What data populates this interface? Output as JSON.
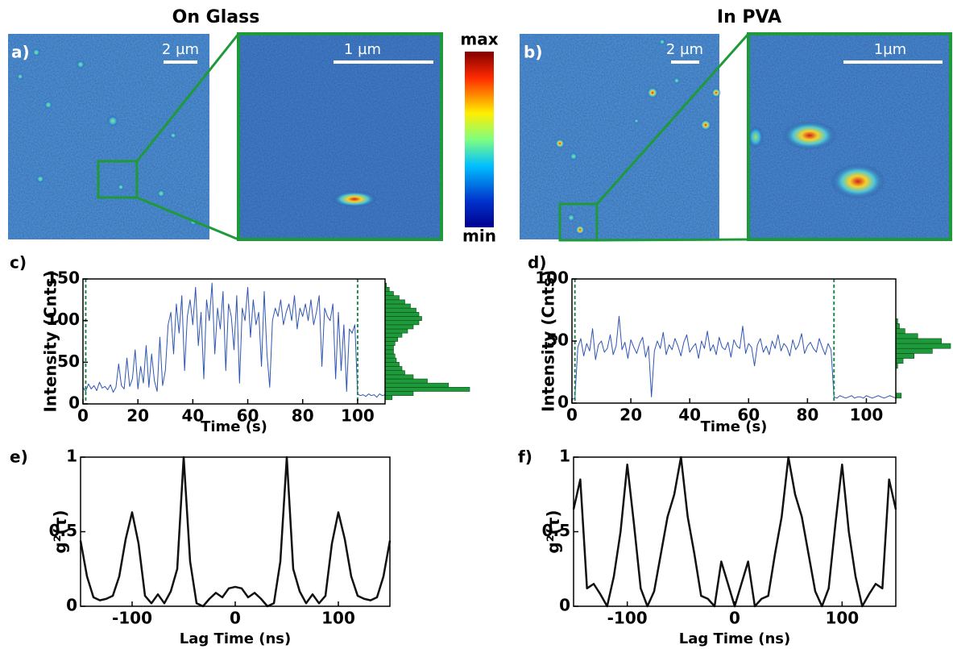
{
  "images": [
    {
      "label": "a)",
      "heading": "On Glass",
      "scale_bar": "2 µm",
      "zoom_scale_bar": "1 µm"
    },
    {
      "label": "b)",
      "heading": "In PVA",
      "scale_bar": "2 µm",
      "zoom_scale_bar": "1µm"
    }
  ],
  "colorbar": {
    "max_label": "max",
    "min_label": "min"
  },
  "chart_data": [
    {
      "type": "line",
      "label": "c)",
      "xlabel": "Time (s)",
      "ylabel": "Intensity (Cnts)",
      "color": "#2f55b3",
      "xlim": [
        0,
        110
      ],
      "ylim": [
        0,
        150
      ],
      "xticks": [
        0,
        20,
        40,
        60,
        80,
        100
      ],
      "yticks": [
        0,
        50,
        100,
        150
      ],
      "x": [
        0,
        1,
        2,
        3,
        4,
        5,
        6,
        7,
        8,
        9,
        10,
        11,
        12,
        13,
        14,
        15,
        16,
        17,
        18,
        19,
        20,
        21,
        22,
        23,
        24,
        25,
        26,
        27,
        28,
        29,
        30,
        31,
        32,
        33,
        34,
        35,
        36,
        37,
        38,
        39,
        40,
        41,
        42,
        43,
        44,
        45,
        46,
        47,
        48,
        49,
        50,
        51,
        52,
        53,
        54,
        55,
        56,
        57,
        58,
        59,
        60,
        61,
        62,
        63,
        64,
        65,
        66,
        67,
        68,
        69,
        70,
        71,
        72,
        73,
        74,
        75,
        76,
        77,
        78,
        79,
        80,
        81,
        82,
        83,
        84,
        85,
        86,
        87,
        88,
        89,
        90,
        91,
        92,
        93,
        94,
        95,
        96,
        97,
        98,
        99,
        100,
        101,
        102,
        103,
        104,
        105,
        106,
        107,
        108,
        109,
        110
      ],
      "values": [
        20,
        15,
        24,
        18,
        22,
        16,
        26,
        19,
        21,
        17,
        23,
        14,
        20,
        48,
        22,
        18,
        55,
        21,
        30,
        65,
        18,
        45,
        25,
        70,
        20,
        60,
        28,
        15,
        80,
        22,
        40,
        95,
        110,
        60,
        120,
        85,
        130,
        40,
        105,
        125,
        95,
        140,
        70,
        110,
        30,
        125,
        100,
        145,
        60,
        115,
        90,
        135,
        40,
        120,
        105,
        65,
        130,
        25,
        115,
        100,
        140,
        80,
        125,
        95,
        110,
        45,
        135,
        60,
        20,
        100,
        115,
        105,
        125,
        95,
        110,
        120,
        100,
        130,
        90,
        115,
        105,
        120,
        100,
        125,
        95,
        110,
        130,
        45,
        115,
        105,
        100,
        120,
        30,
        110,
        40,
        95,
        15,
        90,
        85,
        95,
        12,
        10,
        11,
        9,
        12,
        10,
        11,
        8,
        12,
        10,
        11
      ],
      "vlines": [
        1,
        100
      ],
      "vline_color": "#1e8c4e",
      "histogram": {
        "color": "#1f9a3a",
        "bins": [
          0,
          5,
          10,
          15,
          20,
          25,
          30,
          35,
          40,
          45,
          50,
          55,
          60,
          65,
          70,
          75,
          80,
          85,
          90,
          95,
          100,
          105,
          110,
          115,
          120,
          125,
          130,
          135,
          140,
          145,
          150
        ],
        "counts": [
          0,
          5,
          20,
          60,
          45,
          30,
          20,
          14,
          12,
          10,
          8,
          7,
          6,
          6,
          7,
          9,
          12,
          16,
          20,
          24,
          26,
          24,
          22,
          18,
          14,
          10,
          6,
          3,
          1,
          0
        ]
      }
    },
    {
      "type": "line",
      "label": "d)",
      "xlabel": "Time (s)",
      "ylabel": "Intensity (Cnts)",
      "color": "#2f55b3",
      "xlim": [
        0,
        110
      ],
      "ylim": [
        0,
        100
      ],
      "xticks": [
        0,
        20,
        40,
        60,
        80,
        100
      ],
      "yticks": [
        0,
        50,
        100
      ],
      "x": [
        0,
        1,
        2,
        3,
        4,
        5,
        6,
        7,
        8,
        9,
        10,
        11,
        12,
        13,
        14,
        15,
        16,
        17,
        18,
        19,
        20,
        21,
        22,
        23,
        24,
        25,
        26,
        27,
        28,
        29,
        30,
        31,
        32,
        33,
        34,
        35,
        36,
        37,
        38,
        39,
        40,
        41,
        42,
        43,
        44,
        45,
        46,
        47,
        48,
        49,
        50,
        51,
        52,
        53,
        54,
        55,
        56,
        57,
        58,
        59,
        60,
        61,
        62,
        63,
        64,
        65,
        66,
        67,
        68,
        69,
        70,
        71,
        72,
        73,
        74,
        75,
        76,
        77,
        78,
        79,
        80,
        81,
        82,
        83,
        84,
        85,
        86,
        87,
        88,
        89,
        90,
        91,
        92,
        93,
        94,
        95,
        96,
        97,
        98,
        99,
        100,
        101,
        102,
        103,
        104,
        105,
        106,
        107,
        108,
        109,
        110
      ],
      "values": [
        3,
        4,
        45,
        52,
        38,
        48,
        42,
        60,
        35,
        47,
        50,
        41,
        44,
        55,
        39,
        46,
        70,
        43,
        49,
        36,
        51,
        45,
        40,
        48,
        53,
        37,
        46,
        5,
        42,
        50,
        44,
        57,
        39,
        47,
        43,
        52,
        46,
        38,
        49,
        55,
        41,
        45,
        48,
        36,
        50,
        44,
        58,
        42,
        47,
        39,
        53,
        45,
        43,
        49,
        37,
        51,
        46,
        44,
        62,
        40,
        48,
        45,
        30,
        47,
        52,
        41,
        46,
        39,
        50,
        44,
        55,
        42,
        48,
        45,
        38,
        51,
        43,
        47,
        56,
        40,
        46,
        49,
        44,
        41,
        52,
        45,
        39,
        48,
        43,
        5,
        4,
        6,
        5,
        4,
        5,
        6,
        4,
        5,
        5,
        4,
        6,
        5,
        4,
        5,
        6,
        5,
        4,
        5,
        6,
        5,
        4
      ],
      "vlines": [
        1,
        89
      ],
      "vline_color": "#1e8c4e",
      "histogram": {
        "color": "#1f9a3a",
        "bins": [
          0,
          4,
          8,
          12,
          16,
          20,
          24,
          28,
          32,
          36,
          40,
          44,
          48,
          52,
          56,
          60,
          64,
          68,
          72,
          76,
          80,
          84,
          88,
          92,
          96,
          100
        ],
        "counts": [
          0,
          3,
          0,
          0,
          0,
          0,
          0,
          1,
          4,
          10,
          20,
          30,
          25,
          12,
          5,
          2,
          1,
          0,
          0,
          0,
          0,
          0,
          0,
          0,
          0
        ]
      }
    },
    {
      "type": "line",
      "label": "e)",
      "xlabel": "Lag Time (ns)",
      "ylabel": "g²(τ)",
      "color": "#111111",
      "xlim": [
        -150,
        150
      ],
      "ylim": [
        0,
        1
      ],
      "xticks": [
        -100,
        0,
        100
      ],
      "yticks": [
        0,
        0.5,
        1
      ],
      "x": [
        -150,
        -143.75,
        -137.5,
        -131.25,
        -125,
        -118.75,
        -112.5,
        -106.25,
        -100,
        -93.75,
        -87.5,
        -81.25,
        -75,
        -68.75,
        -62.5,
        -56.25,
        -50,
        -43.75,
        -37.5,
        -31.25,
        -25,
        -18.75,
        -12.5,
        -6.25,
        0,
        6.25,
        12.5,
        18.75,
        25,
        31.25,
        37.5,
        43.75,
        50,
        56.25,
        62.5,
        68.75,
        75,
        81.25,
        87.5,
        93.75,
        100,
        106.25,
        112.5,
        118.75,
        125,
        131.25,
        137.5,
        143.75,
        150
      ],
      "values": [
        0.44,
        0.2,
        0.06,
        0.04,
        0.05,
        0.07,
        0.2,
        0.45,
        0.63,
        0.42,
        0.07,
        0.02,
        0.08,
        0.02,
        0.1,
        0.25,
        1.0,
        0.3,
        0.02,
        0.0,
        0.05,
        0.09,
        0.06,
        0.12,
        0.13,
        0.12,
        0.06,
        0.09,
        0.05,
        0.0,
        0.02,
        0.3,
        1.0,
        0.25,
        0.1,
        0.02,
        0.08,
        0.02,
        0.07,
        0.42,
        0.63,
        0.45,
        0.2,
        0.07,
        0.05,
        0.04,
        0.06,
        0.2,
        0.44
      ]
    },
    {
      "type": "line",
      "label": "f)",
      "xlabel": "Lag Time (ns)",
      "ylabel": "g²(τ)",
      "color": "#111111",
      "xlim": [
        -150,
        150
      ],
      "ylim": [
        0,
        1
      ],
      "xticks": [
        -100,
        0,
        100
      ],
      "yticks": [
        0,
        0.5,
        1
      ],
      "x": [
        -150,
        -143.75,
        -137.5,
        -131.25,
        -125,
        -118.75,
        -112.5,
        -106.25,
        -100,
        -93.75,
        -87.5,
        -81.25,
        -75,
        -68.75,
        -62.5,
        -56.25,
        -50,
        -43.75,
        -37.5,
        -31.25,
        -25,
        -18.75,
        -12.5,
        -6.25,
        0,
        6.25,
        12.5,
        18.75,
        25,
        31.25,
        37.5,
        43.75,
        50,
        56.25,
        62.5,
        68.75,
        75,
        81.25,
        87.5,
        93.75,
        100,
        106.25,
        112.5,
        118.75,
        125,
        131.25,
        137.5,
        143.75,
        150
      ],
      "values": [
        0.65,
        0.85,
        0.12,
        0.15,
        0.08,
        0.0,
        0.2,
        0.5,
        0.95,
        0.55,
        0.12,
        0.0,
        0.1,
        0.35,
        0.6,
        0.75,
        1.0,
        0.6,
        0.35,
        0.07,
        0.05,
        0.0,
        0.3,
        0.15,
        0.0,
        0.15,
        0.3,
        0.0,
        0.05,
        0.07,
        0.35,
        0.6,
        1.0,
        0.75,
        0.6,
        0.35,
        0.1,
        0.0,
        0.12,
        0.55,
        0.95,
        0.5,
        0.2,
        0.0,
        0.08,
        0.15,
        0.12,
        0.85,
        0.65
      ]
    }
  ]
}
